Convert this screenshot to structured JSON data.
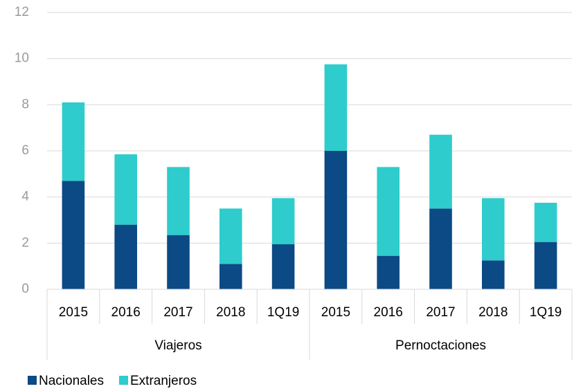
{
  "chart_data": {
    "type": "stacked_bar",
    "groups": [
      {
        "name": "Viajeros",
        "categories": [
          "2015",
          "2016",
          "2017",
          "2018",
          "1Q19"
        ]
      },
      {
        "name": "Pernoctaciones",
        "categories": [
          "2015",
          "2016",
          "2017",
          "2018",
          "1Q19"
        ]
      }
    ],
    "series": [
      {
        "name": "Nacionales",
        "color": "#0b4a84",
        "values": [
          4.7,
          2.8,
          2.35,
          1.1,
          1.95,
          6.0,
          1.45,
          3.5,
          1.25,
          2.05
        ]
      },
      {
        "name": "Extranjeros",
        "color": "#2ecccc",
        "values": [
          3.4,
          3.05,
          2.95,
          2.4,
          2.0,
          3.75,
          3.85,
          3.2,
          2.7,
          1.7
        ]
      }
    ],
    "ylim": [
      0,
      12
    ],
    "yticks": [
      0,
      2,
      4,
      6,
      8,
      10,
      12
    ],
    "grid": true,
    "legend": "bottom-left"
  }
}
